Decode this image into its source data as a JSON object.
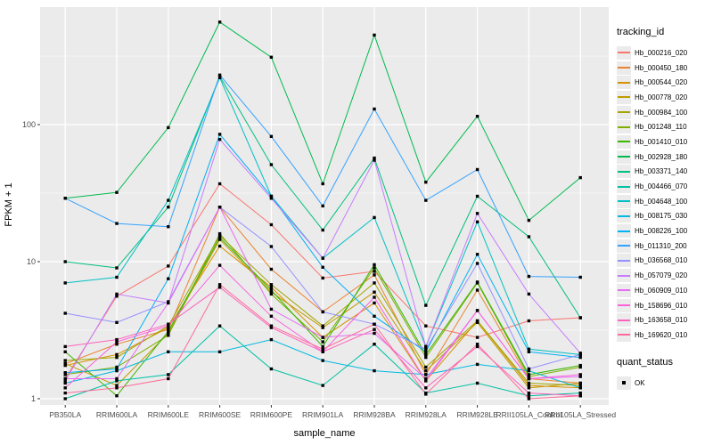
{
  "chart_data": {
    "type": "line",
    "title": "",
    "xlabel": "sample_name",
    "ylabel": "FPKM + 1",
    "y_scale": "log10",
    "y_ticks": [
      1,
      10,
      100
    ],
    "ylim": [
      1,
      700
    ],
    "grid": true,
    "panel_bg": "#ebebeb",
    "gridline_color": "#ffffff",
    "point_shape": "black-square",
    "legend_title": "tracking_id",
    "legend_position": "right",
    "quant_legend": {
      "title": "quant_status",
      "items": [
        "OK"
      ]
    },
    "x_categories": [
      "PB350LA",
      "RRIM600LA",
      "RRIM600LE",
      "RRIM600SE",
      "RRIM600PE",
      "RRIM901LA",
      "RRIM928BA",
      "RRIM928LA",
      "RRIM928LE",
      "RRII105LA_Control",
      "RRII105LA_Stressed"
    ],
    "series": [
      {
        "name": "Hb_000216_020",
        "color": "#F8766D",
        "values": [
          1.4,
          5.6,
          9.3,
          37,
          18.6,
          7.6,
          8.5,
          3.4,
          2.8,
          3.7,
          3.9
        ]
      },
      {
        "name": "Hb_000450_180",
        "color": "#EA8331",
        "values": [
          1.8,
          2.5,
          3.2,
          25,
          8.8,
          4.3,
          8.0,
          1.5,
          6.2,
          1.4,
          1.3
        ]
      },
      {
        "name": "Hb_000544_020",
        "color": "#D89000",
        "values": [
          1.75,
          2.1,
          3.3,
          13,
          6.5,
          2.8,
          5.0,
          1.35,
          3.7,
          1.25,
          1.2
        ]
      },
      {
        "name": "Hb_000778_020",
        "color": "#C09B00",
        "values": [
          1.8,
          1.25,
          3.0,
          14.5,
          6.0,
          3.3,
          6.0,
          1.6,
          3.6,
          1.2,
          1.3
        ]
      },
      {
        "name": "Hb_000984_100",
        "color": "#A3A500",
        "values": [
          1.9,
          2.0,
          3.4,
          15.5,
          6.8,
          3.4,
          7.0,
          1.7,
          3.7,
          1.3,
          1.25
        ]
      },
      {
        "name": "Hb_001248_110",
        "color": "#7CAE00",
        "values": [
          1.5,
          1.7,
          2.9,
          16,
          5.8,
          2.6,
          9.0,
          2.0,
          7.0,
          1.45,
          1.7
        ]
      },
      {
        "name": "Hb_001410_010",
        "color": "#39B600",
        "values": [
          2.2,
          1.05,
          3.1,
          15,
          6.2,
          2.4,
          9.5,
          2.1,
          7.1,
          1.5,
          1.75
        ]
      },
      {
        "name": "Hb_002928_180",
        "color": "#00BB4E",
        "values": [
          29,
          32,
          95,
          560,
          310,
          37,
          450,
          38,
          115,
          20,
          41
        ]
      },
      {
        "name": "Hb_003371_140",
        "color": "#00BF7D",
        "values": [
          10,
          9.0,
          25,
          225,
          51,
          17,
          57,
          4.8,
          30,
          15.2,
          3.9
        ]
      },
      {
        "name": "Hb_004466_070",
        "color": "#00C1A3",
        "values": [
          1.0,
          1.35,
          1.5,
          3.4,
          1.65,
          1.25,
          2.5,
          1.1,
          1.3,
          1.05,
          1.1
        ]
      },
      {
        "name": "Hb_004648_100",
        "color": "#00BFC4",
        "values": [
          7.0,
          7.7,
          28,
          220,
          30,
          10.6,
          21,
          2.4,
          19.5,
          2.3,
          2.1
        ]
      },
      {
        "name": "Hb_008175_030",
        "color": "#00BAE0",
        "values": [
          1.3,
          1.6,
          2.2,
          2.2,
          2.7,
          1.9,
          1.6,
          1.5,
          1.78,
          1.6,
          1.2
        ]
      },
      {
        "name": "Hb_008226_100",
        "color": "#00B0F6",
        "values": [
          1.55,
          1.65,
          7.5,
          85,
          30,
          9.1,
          4.0,
          2.2,
          11.3,
          2.2,
          2.0
        ]
      },
      {
        "name": "Hb_011310_200",
        "color": "#35A2FF",
        "values": [
          29,
          19,
          18,
          230,
          82,
          25.5,
          130,
          28,
          47,
          7.8,
          7.7
        ]
      },
      {
        "name": "Hb_036568_010",
        "color": "#9590FF",
        "values": [
          4.2,
          3.6,
          5.1,
          25,
          12.9,
          4.3,
          3.5,
          2.3,
          9.7,
          1.65,
          2.1
        ]
      },
      {
        "name": "Hb_057079_020",
        "color": "#C77CFF",
        "values": [
          1.35,
          5.8,
          5.0,
          78,
          29,
          10.6,
          55,
          2.4,
          22.5,
          5.8,
          2.15
        ]
      },
      {
        "name": "Hb_060909_010",
        "color": "#E76BF3",
        "values": [
          1.4,
          1.4,
          5.0,
          25,
          4.5,
          2.8,
          3.0,
          1.4,
          4.4,
          1.4,
          1.45
        ]
      },
      {
        "name": "Hb_158696_010",
        "color": "#FA62DB",
        "values": [
          1.2,
          2.6,
          3.4,
          9.4,
          4.0,
          2.2,
          5.5,
          1.35,
          4.4,
          1.4,
          1.5
        ]
      },
      {
        "name": "Hb_163658_010",
        "color": "#FF62BC",
        "values": [
          2.4,
          2.7,
          3.5,
          6.5,
          3.3,
          2.2,
          3.2,
          1.2,
          2.4,
          1.1,
          1.05
        ]
      },
      {
        "name": "Hb_169620_010",
        "color": "#FF6A98",
        "values": [
          1.1,
          1.2,
          1.4,
          6.8,
          3.4,
          2.3,
          3.5,
          1.08,
          2.5,
          1.0,
          1.05
        ]
      }
    ]
  }
}
